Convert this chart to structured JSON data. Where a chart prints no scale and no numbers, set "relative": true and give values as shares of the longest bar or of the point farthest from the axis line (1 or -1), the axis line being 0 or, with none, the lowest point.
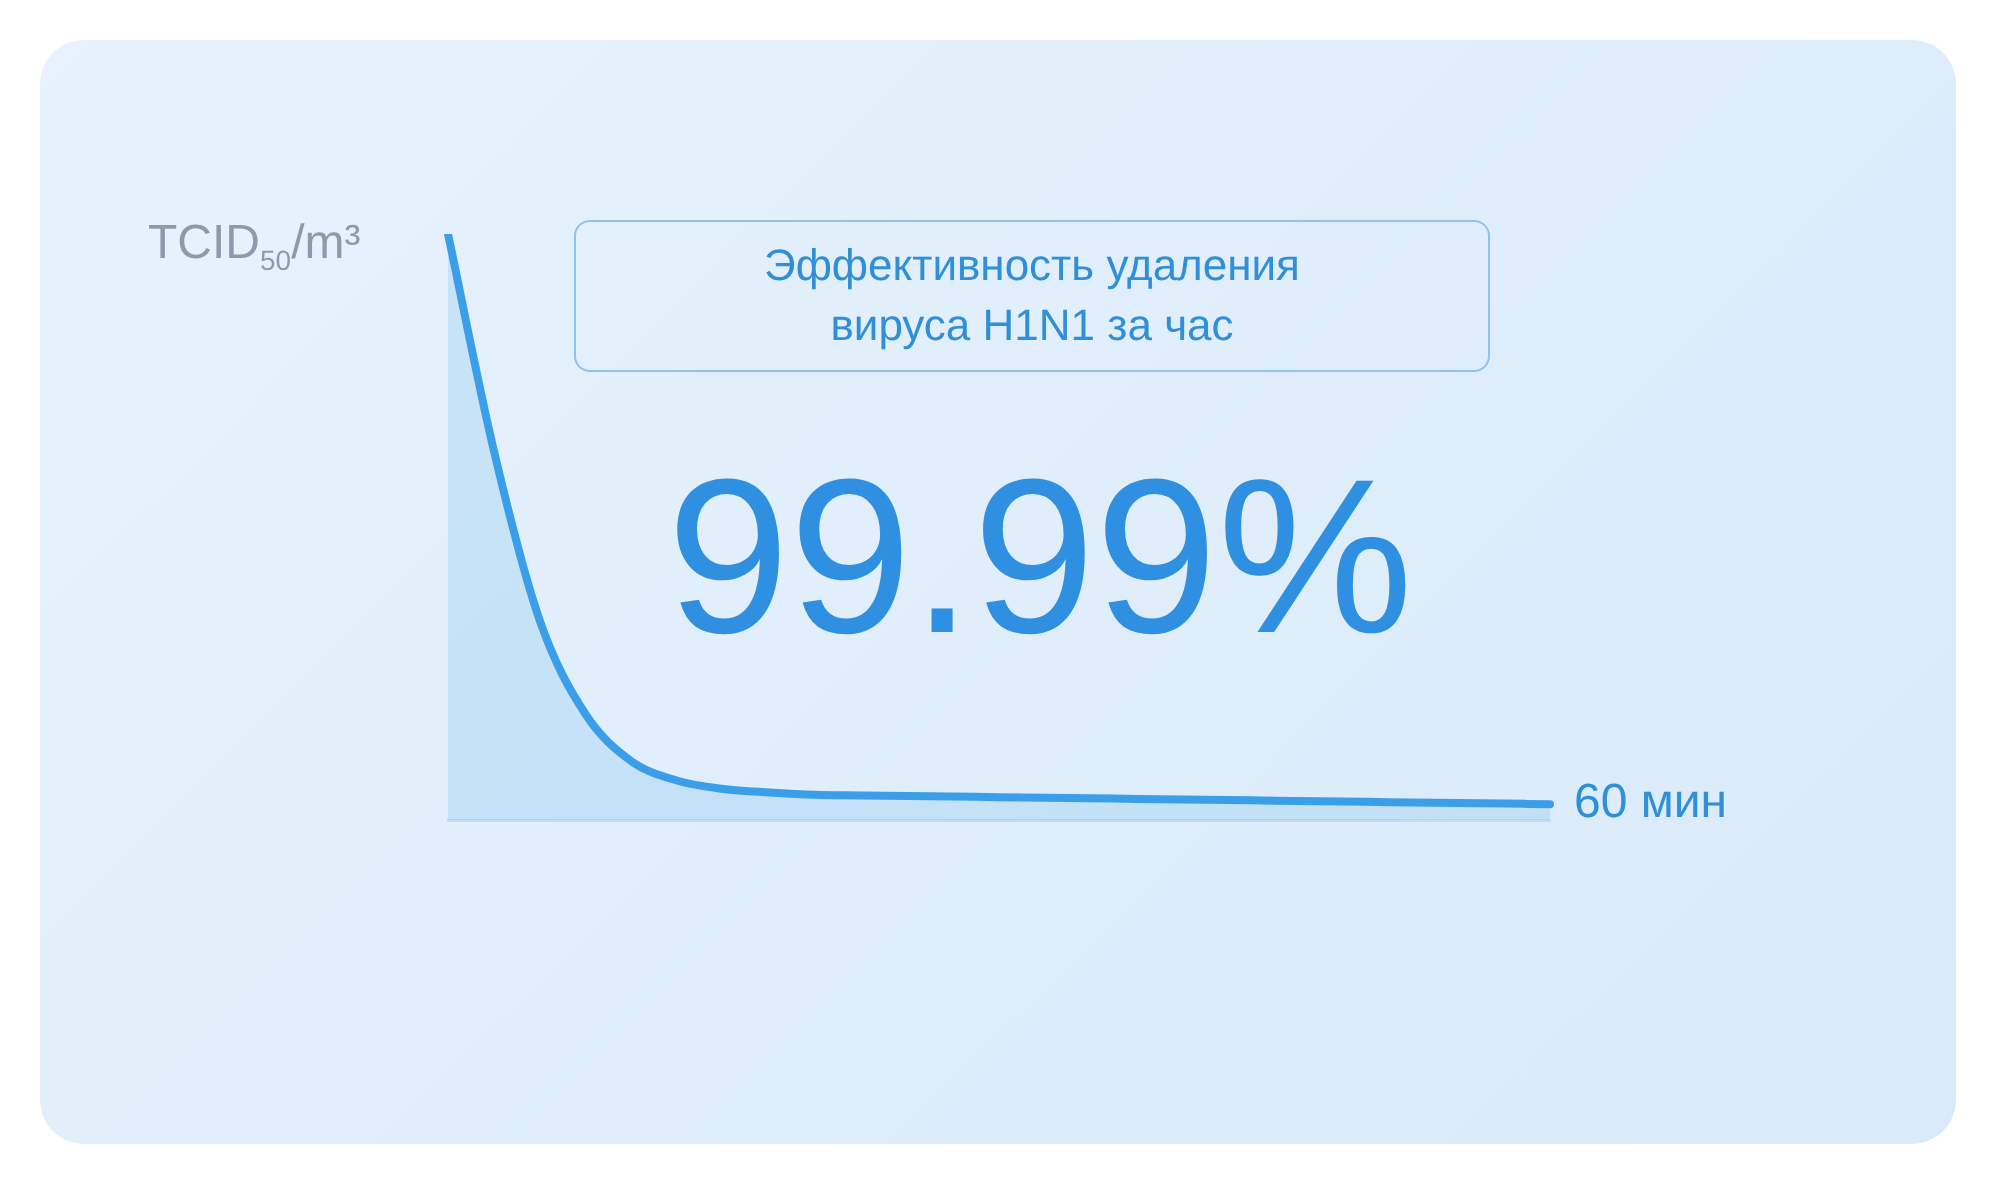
{
  "chart_data": {
    "type": "area",
    "relative": true,
    "ylabel": "TCID$_{50}$/m³",
    "xlabel": "60 мин",
    "categories": [
      null,
      null,
      null,
      null,
      null,
      null,
      null,
      null,
      null,
      null,
      null,
      null,
      null,
      null,
      null,
      null,
      null,
      null,
      null,
      null,
      null,
      null,
      null,
      null,
      null
    ],
    "series": [
      {
        "color": "#3a9fe8",
        "values": [
          1.0,
          0.63,
          0.34,
          0.18,
          0.1,
          0.067,
          0.053,
          0.047,
          0.043,
          0.042,
          0.041,
          0.04,
          0.039,
          0.038,
          0.037,
          0.036,
          0.035,
          0.034,
          0.033,
          0.032,
          0.031,
          0.03,
          0.029,
          0.028,
          0.027
        ]
      }
    ],
    "annotations": [
      "Эффективность удаления вируса H1N1 за час",
      "99.99%"
    ]
  }
}
